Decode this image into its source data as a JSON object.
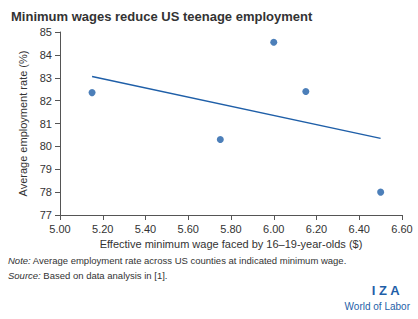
{
  "chart_data": {
    "type": "scatter",
    "title": "Minimum wages reduce US teenage employment",
    "xlabel": "Effective minimum wage faced by 16–19-year-olds ($)",
    "ylabel": "Average employment rate (%)",
    "series": [
      {
        "type": "scatter",
        "marker": "circle",
        "color": "#1f5fa8",
        "x": [
          5.15,
          5.75,
          6.0,
          6.15,
          6.5
        ],
        "values": [
          82.35,
          80.3,
          84.55,
          82.4,
          78.0
        ]
      },
      {
        "type": "line",
        "line_style": "solid",
        "color": "#1f5fa8",
        "x": [
          5.15,
          6.5
        ],
        "values": [
          83.05,
          80.35
        ]
      }
    ],
    "xlim": [
      5.0,
      6.6
    ],
    "xticks": [
      {
        "value": 5.0,
        "label": "5.00"
      },
      {
        "value": 5.2,
        "label": "5.20"
      },
      {
        "value": 5.4,
        "label": "5.40"
      },
      {
        "value": 5.6,
        "label": "5.60"
      },
      {
        "value": 5.8,
        "label": "5.80"
      },
      {
        "value": 6.0,
        "label": "6.00"
      },
      {
        "value": 6.2,
        "label": "6.20"
      },
      {
        "value": 6.4,
        "label": "6.40"
      },
      {
        "value": 6.6,
        "label": "6.60"
      }
    ],
    "ylim": [
      77,
      85
    ],
    "yticks": [
      77,
      78,
      79,
      80,
      81,
      82,
      83,
      84,
      85
    ],
    "grid": false,
    "note": "Note: Average employment rate across US counties at indicated minimum wage.",
    "source": "Source: Based on data analysis in [1].",
    "logo": [
      "I Z A",
      "World of Labor"
    ]
  }
}
